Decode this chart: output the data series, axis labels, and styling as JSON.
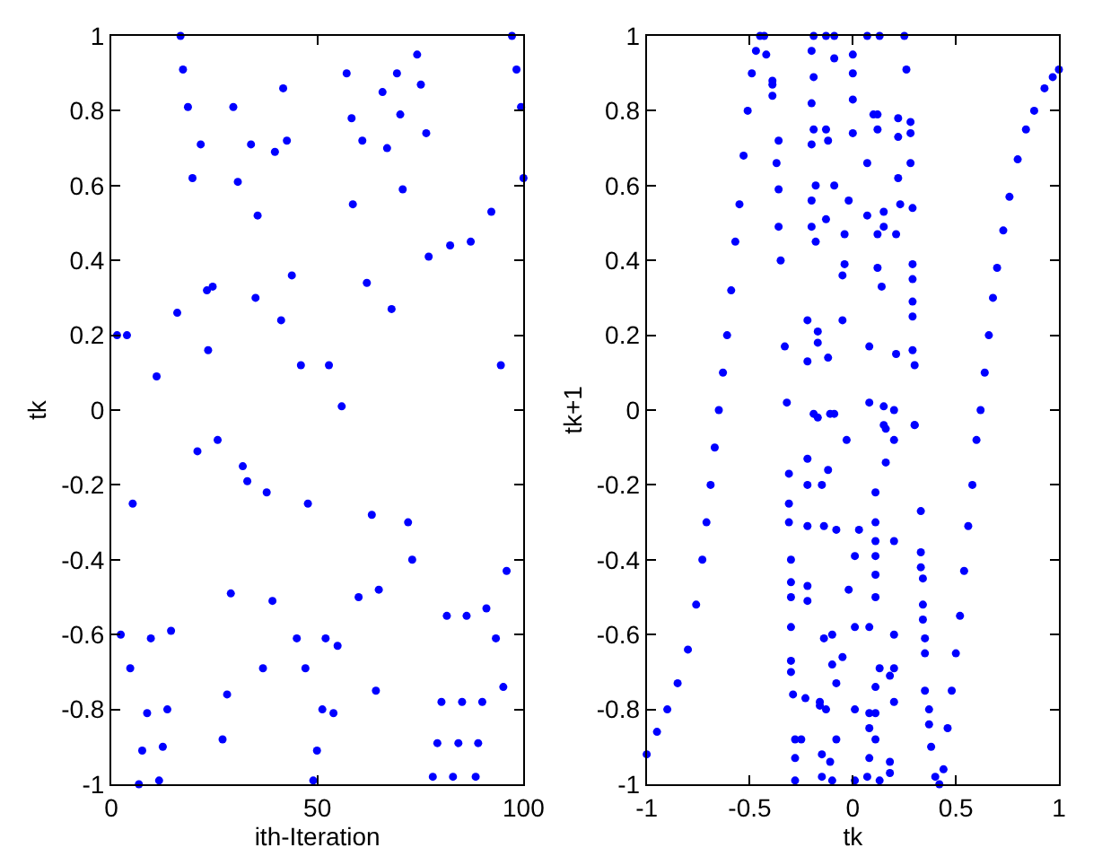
{
  "chart_data": [
    {
      "type": "scatter",
      "xlabel": "ith-Iteration",
      "ylabel": "tk",
      "xlim": [
        0,
        100
      ],
      "xticks": [
        0,
        50,
        100
      ],
      "ylim": [
        -1,
        1
      ],
      "yticks": [
        -1,
        -0.8,
        -0.6,
        -0.4,
        -0.2,
        0,
        0.2,
        0.4,
        0.6,
        0.8,
        1
      ],
      "marker": "circle",
      "series": [
        {
          "color": "#0000ff",
          "x": [
            1.4,
            3.8,
            11,
            16,
            16.8,
            17.4,
            18.6,
            19.7,
            21.7,
            23.2,
            23.5,
            24.6,
            29.6,
            30.7,
            33.9,
            35,
            35.5,
            39.7,
            41.2,
            41.7,
            42.6,
            43.8,
            46,
            52.8,
            55.9,
            57.1,
            58.3,
            58.6,
            60.9,
            62,
            65.8,
            66.9,
            68,
            69.3,
            70.1,
            70.7,
            74.2,
            75.1,
            76.4,
            77,
            82.2,
            87.2,
            92.2,
            94.5,
            97.2,
            98.3,
            99.4,
            100,
            2.3,
            5.2,
            4.6,
            6.7,
            7.5,
            8.7,
            9.6,
            11.6,
            12.5,
            13.6,
            14.5,
            20.9,
            25.8,
            27,
            28.1,
            29,
            31.9,
            33,
            36.8,
            37.7,
            39.1,
            45,
            47.1,
            47.7,
            49,
            49.9,
            51.2,
            52,
            53.9,
            54.9,
            60,
            63.2,
            64.2,
            64.9,
            72,
            73,
            78,
            79.1,
            80.1,
            81.4,
            82.9,
            84.2,
            85.1,
            86.2,
            88.4,
            89,
            90,
            91,
            93.3,
            95.1,
            95.9
          ],
          "values": [
            0.2,
            0.2,
            0.09,
            0.26,
            1.0,
            0.91,
            0.81,
            0.62,
            0.71,
            0.32,
            0.16,
            0.33,
            0.81,
            0.61,
            0.71,
            0.3,
            0.52,
            0.69,
            0.24,
            0.86,
            0.72,
            0.36,
            0.12,
            0.12,
            0.01,
            0.9,
            0.78,
            0.55,
            0.72,
            0.34,
            0.85,
            0.7,
            0.27,
            0.9,
            0.79,
            0.59,
            0.95,
            0.87,
            0.74,
            0.41,
            0.44,
            0.45,
            0.53,
            0.12,
            1.0,
            0.91,
            0.81,
            0.62,
            -0.6,
            -0.25,
            -0.69,
            -1.0,
            -0.91,
            -0.81,
            -0.61,
            -0.99,
            -0.9,
            -0.8,
            -0.59,
            -0.11,
            -0.08,
            -0.88,
            -0.76,
            -0.49,
            -0.15,
            -0.19,
            -0.69,
            -0.22,
            -0.51,
            -0.61,
            -0.69,
            -0.25,
            -0.99,
            -0.91,
            -0.8,
            -0.61,
            -0.81,
            -0.63,
            -0.5,
            -0.28,
            -0.75,
            -0.48,
            -0.3,
            -0.4,
            -0.98,
            -0.89,
            -0.78,
            -0.55,
            -0.98,
            -0.89,
            -0.78,
            -0.55,
            -0.98,
            -0.89,
            -0.78,
            -0.53,
            -0.61,
            -0.74,
            -0.43
          ]
        }
      ]
    },
    {
      "type": "scatter",
      "xlabel": "tk",
      "ylabel": "tk+1",
      "xlim": [
        -1,
        1
      ],
      "xticks": [
        -1,
        -0.5,
        0,
        0.5,
        1
      ],
      "ylim": [
        -1,
        1
      ],
      "yticks": [
        -1,
        -0.8,
        -0.6,
        -0.4,
        -0.2,
        0,
        0.2,
        0.4,
        0.6,
        0.8,
        1
      ],
      "marker": "circle",
      "series": [
        {
          "color": "#0000ff",
          "x": [
            -1,
            -0.95,
            -0.9,
            -0.85,
            -0.8,
            -0.76,
            -0.73,
            -0.71,
            -0.69,
            -0.67,
            -0.65,
            -0.63,
            -0.61,
            -0.59,
            -0.57,
            -0.55,
            -0.53,
            -0.51,
            -0.49,
            -0.47,
            -0.45,
            -0.43,
            -0.42,
            -0.39,
            -0.39,
            0.4,
            0.42,
            0.44,
            0.46,
            0.48,
            0.5,
            0.52,
            0.54,
            0.56,
            0.58,
            0.6,
            0.62,
            0.64,
            0.66,
            0.68,
            0.7,
            0.73,
            0.76,
            0.8,
            0.84,
            0.88,
            0.93,
            0.97,
            1.0,
            0.38,
            0.37,
            -0.19,
            -0.13,
            -0.09,
            0.07,
            0.13,
            0.25,
            -0.2,
            -0.09,
            0,
            0,
            -0.19,
            0.26,
            -0.39,
            0,
            -0.2,
            0.1,
            0.12,
            0.22,
            0.28,
            -0.19,
            -0.13,
            0,
            0.12,
            0.22,
            0.28,
            -0.2,
            -0.12,
            -0.36,
            -0.37,
            0.28,
            0.07,
            0.22,
            -0.36,
            -0.18,
            -0.09,
            -0.2,
            -0.02,
            0.07,
            0.15,
            0.23,
            0.29,
            -0.13,
            -0.2,
            -0.36,
            0.15,
            0.12,
            0.21,
            -0.04,
            -0.18,
            -0.35,
            0.29,
            -0.04,
            -0.05,
            0.12,
            0.29,
            0.14,
            0.29,
            -0.22,
            -0.05,
            0.29,
            -0.17,
            -0.17,
            -0.33,
            0.08,
            0.29,
            0.21,
            -0.22,
            -0.12,
            0.3,
            -0.32,
            0.08,
            0.15,
            0.2,
            -0.17,
            -0.09,
            0.3,
            0.15,
            -0.19,
            -0.11,
            -0.03,
            0.16,
            0.2,
            0.3,
            -0.31,
            -0.22,
            -0.12,
            -0.22,
            -0.15,
            0.11,
            0.16,
            -0.31,
            0.33,
            -0.31,
            -0.22,
            -0.14,
            -0.08,
            0.03,
            0.11,
            0.2,
            0.11,
            0.33,
            0.11,
            0.01,
            -0.3,
            0.33,
            0.11,
            -0.3,
            -0.22,
            0.34,
            -0.02,
            -0.3,
            -0.22,
            0.11,
            0.34,
            0.34,
            -0.3,
            0.01,
            0.08,
            0.2,
            -0.1,
            -0.14,
            0.35,
            0.35,
            -0.05,
            -0.3,
            -0.1,
            -0.3,
            0.13,
            0.2,
            0.18,
            -0.08,
            0.11,
            0.35,
            -0.29,
            -0.23,
            -0.16,
            0.2,
            -0.16,
            -0.13,
            0.01,
            0.37,
            0.08,
            0.11,
            0.08,
            -0.28,
            -0.25,
            -0.08,
            0.11,
            -0.28,
            -0.15,
            -0.11,
            0.18,
            0.08,
            -0.28,
            -0.15,
            -0.1,
            0.01,
            0.07,
            0.13,
            0.18
          ],
          "values": [
            -0.92,
            -0.86,
            -0.8,
            -0.73,
            -0.64,
            -0.52,
            -0.4,
            -0.3,
            -0.2,
            -0.1,
            0,
            0.1,
            0.2,
            0.32,
            0.45,
            0.55,
            0.68,
            0.8,
            0.9,
            0.96,
            1.0,
            1.0,
            0.95,
            0.88,
            0.84,
            -0.98,
            -1.0,
            -0.96,
            -0.85,
            -0.75,
            -0.65,
            -0.55,
            -0.43,
            -0.31,
            -0.2,
            -0.08,
            0,
            0.1,
            0.2,
            0.3,
            0.38,
            0.48,
            0.57,
            0.67,
            0.75,
            0.8,
            0.86,
            0.89,
            0.91,
            -0.9,
            -0.84,
            1.0,
            1.0,
            1.0,
            1.0,
            1.0,
            1.0,
            0.96,
            0.94,
            0.95,
            0.9,
            0.89,
            0.91,
            0.87,
            0.83,
            0.82,
            0.79,
            0.79,
            0.78,
            0.77,
            0.75,
            0.75,
            0.74,
            0.75,
            0.73,
            0.74,
            0.71,
            0.72,
            0.72,
            0.66,
            0.66,
            0.66,
            0.62,
            0.59,
            0.6,
            0.6,
            0.56,
            0.56,
            0.52,
            0.53,
            0.55,
            0.54,
            0.51,
            0.49,
            0.49,
            0.49,
            0.47,
            0.47,
            0.47,
            0.45,
            0.4,
            0.39,
            0.39,
            0.36,
            0.38,
            0.35,
            0.33,
            0.29,
            0.24,
            0.24,
            0.25,
            0.21,
            0.18,
            0.17,
            0.17,
            0.16,
            0.15,
            0.13,
            0.14,
            0.12,
            0.02,
            0.02,
            0.01,
            0.0,
            -0.02,
            -0.01,
            -0.04,
            -0.04,
            -0.01,
            -0.01,
            -0.08,
            -0.05,
            -0.08,
            -0.04,
            -0.17,
            -0.13,
            -0.16,
            -0.2,
            -0.2,
            -0.22,
            -0.14,
            -0.25,
            -0.27,
            -0.3,
            -0.31,
            -0.31,
            -0.32,
            -0.32,
            -0.3,
            -0.35,
            -0.35,
            -0.38,
            -0.39,
            -0.39,
            -0.4,
            -0.42,
            -0.44,
            -0.46,
            -0.47,
            -0.45,
            -0.48,
            -0.5,
            -0.51,
            -0.5,
            -0.52,
            -0.56,
            -0.58,
            -0.58,
            -0.58,
            -0.6,
            -0.6,
            -0.61,
            -0.61,
            -0.65,
            -0.66,
            -0.67,
            -0.68,
            -0.7,
            -0.69,
            -0.69,
            -0.71,
            -0.73,
            -0.74,
            -0.75,
            -0.76,
            -0.77,
            -0.78,
            -0.78,
            -0.79,
            -0.8,
            -0.8,
            -0.8,
            -0.81,
            -0.81,
            -0.85,
            -0.88,
            -0.88,
            -0.88,
            -0.88,
            -0.93,
            -0.92,
            -0.94,
            -0.94,
            -0.93,
            -0.99,
            -0.98,
            -0.99,
            -0.99,
            -0.98,
            -0.99,
            -0.97
          ]
        }
      ]
    }
  ]
}
